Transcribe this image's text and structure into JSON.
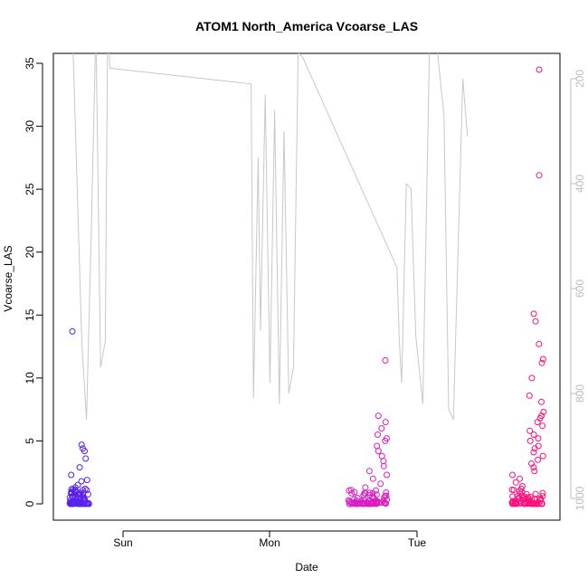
{
  "chart_data": {
    "type": "scatter",
    "title": "ATOM1 North_America Vcoarse_LAS",
    "xlabel": "Date",
    "ylabel": "Vcoarse_LAS",
    "x_ticks": [
      "Sun",
      "Mon",
      "Tue"
    ],
    "y_ticks": [
      0,
      5,
      10,
      15,
      20,
      25,
      30,
      35
    ],
    "ylim": [
      0,
      35
    ],
    "y2_ticks": [
      200,
      400,
      600,
      800,
      1000
    ],
    "y2lim": [
      200,
      1000
    ],
    "y2_reversed": true,
    "colors": {
      "start": "#5522ee",
      "mid": "#cc22dd",
      "end": "#ff1177",
      "line": "#c8c8c8"
    },
    "flight_groups": [
      {
        "values": [
          13.7,
          3.6,
          4.7,
          4.4,
          4.2,
          2.9,
          2.3,
          1.9,
          1.8,
          1.5,
          1.3,
          1.2,
          1.1,
          0.9,
          0.8,
          0.7,
          0.6,
          0.5,
          0.4,
          0.3,
          0.2,
          0.1,
          0.05,
          0.0
        ]
      },
      {
        "values": [
          11.4,
          7.0,
          6.5,
          6.0,
          5.5,
          5.2,
          5.0,
          4.6,
          4.2,
          3.8,
          3.4,
          3.0,
          2.6,
          2.3,
          2.0,
          1.6,
          1.3,
          1.1,
          0.9,
          0.7,
          0.5,
          0.3,
          0.2,
          0.1,
          0.0
        ]
      },
      {
        "values": [
          34.5,
          26.1,
          15.1,
          14.5,
          12.7,
          11.5,
          11.2,
          10.0,
          8.6,
          8.1,
          7.3,
          7.0,
          6.8,
          6.5,
          6.2,
          5.8,
          5.5,
          5.2,
          5.0,
          4.6,
          4.4,
          4.1,
          3.8,
          3.5,
          3.2,
          2.9,
          2.6,
          2.3,
          2.0,
          1.7,
          1.4,
          1.1,
          0.8,
          0.5,
          0.3,
          0.1,
          0.0
        ]
      }
    ],
    "pressure_profile": [
      [
        0.0,
        100
      ],
      [
        0.02,
        700
      ],
      [
        0.03,
        850
      ],
      [
        0.04,
        500
      ],
      [
        0.05,
        100
      ],
      [
        0.06,
        750
      ],
      [
        0.07,
        700
      ],
      [
        0.075,
        100
      ],
      [
        0.08,
        180
      ],
      [
        0.38,
        210
      ],
      [
        0.385,
        810
      ],
      [
        0.395,
        350
      ],
      [
        0.4,
        680
      ],
      [
        0.41,
        230
      ],
      [
        0.42,
        780
      ],
      [
        0.43,
        260
      ],
      [
        0.44,
        820
      ],
      [
        0.45,
        300
      ],
      [
        0.46,
        800
      ],
      [
        0.47,
        750
      ],
      [
        0.48,
        150
      ],
      [
        0.49,
        160
      ],
      [
        0.69,
        560
      ],
      [
        0.695,
        700
      ],
      [
        0.7,
        780
      ],
      [
        0.71,
        400
      ],
      [
        0.72,
        410
      ],
      [
        0.73,
        690
      ],
      [
        0.745,
        820
      ],
      [
        0.76,
        100
      ],
      [
        0.775,
        140
      ],
      [
        0.79,
        270
      ],
      [
        0.8,
        830
      ],
      [
        0.81,
        850
      ],
      [
        0.83,
        200
      ],
      [
        0.84,
        310
      ]
    ]
  }
}
